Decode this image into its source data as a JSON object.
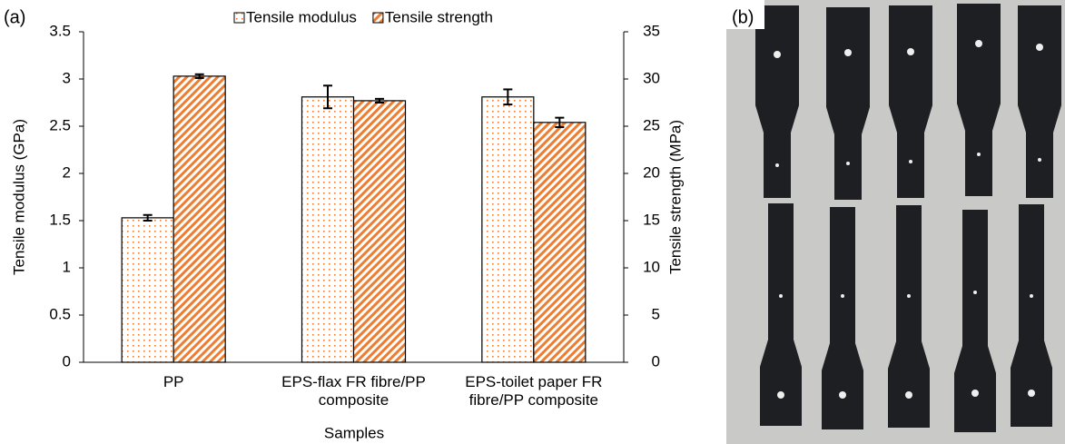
{
  "panel_a_label": "(a)",
  "panel_b_label": "(b)",
  "chart_data": {
    "type": "bar",
    "x_label": "Samples",
    "y_label": "Tensile modulus (GPa)",
    "y2_label": "Tensile strength (MPa)",
    "categories": [
      "PP",
      "EPS-flax FR fibre/PP composite",
      "EPS-toilet paper FR fibre/PP composite"
    ],
    "series": [
      {
        "name": "Tensile modulus",
        "color": "#ed7d31",
        "pattern": "dots",
        "values": [
          1.53,
          2.81,
          2.81
        ],
        "errors": [
          0.03,
          0.12,
          0.08
        ]
      },
      {
        "name": "Tensile strength",
        "color": "#ed7d31",
        "pattern": "stripes",
        "axis": "y2",
        "values": [
          30.3,
          27.7,
          25.4
        ],
        "errors": [
          0.2,
          0.2,
          0.5
        ]
      }
    ],
    "ylim": [
      0,
      3.5
    ],
    "yticks": [
      0,
      0.5,
      1,
      1.5,
      2,
      2.5,
      3,
      3.5
    ],
    "y2lim": [
      0,
      35
    ],
    "y2ticks": [
      0,
      5,
      10,
      15,
      20,
      25,
      30,
      35
    ],
    "legend": "top"
  }
}
